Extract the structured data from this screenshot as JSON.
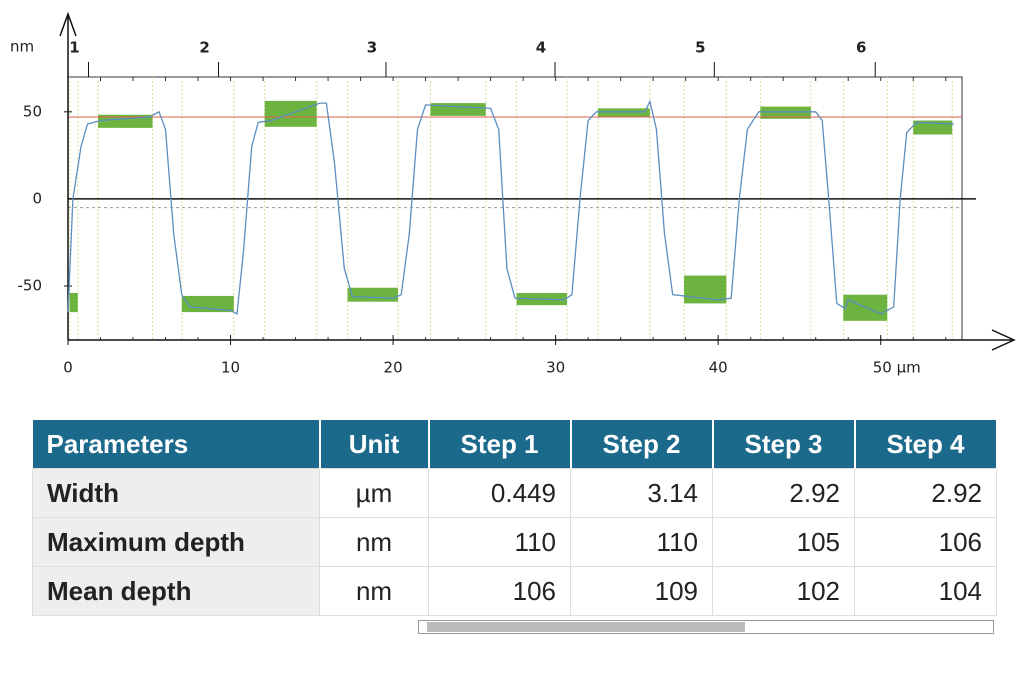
{
  "chart_data": {
    "type": "line",
    "y_unit": "nm",
    "color": "#5b8fc0",
    "x": [
      0,
      0.3,
      0.8,
      1.2,
      2,
      5,
      5.6,
      6,
      6.5,
      7,
      7.5,
      10,
      10.4,
      10.8,
      11.3,
      11.7,
      12.5,
      15.5,
      15.9,
      16.4,
      17,
      17.5,
      20,
      20.5,
      21,
      21.5,
      22,
      26,
      26.5,
      27,
      27.5,
      30.5,
      31,
      31.5,
      32,
      32.5,
      35.5,
      35.8,
      36.2,
      36.7,
      37.2,
      40,
      40.8,
      41.3,
      41.8,
      42.5,
      46,
      46.4,
      46.8,
      47.3,
      47.8,
      48,
      50,
      50.8,
      51.2,
      51.6,
      52.2,
      54.5
    ],
    "values": [
      -65,
      0,
      30,
      43,
      45,
      47,
      50,
      40,
      -20,
      -55,
      -62,
      -64,
      -66,
      -30,
      30,
      44,
      45,
      55,
      55,
      20,
      -40,
      -56,
      -57,
      -55,
      -20,
      40,
      54,
      52,
      40,
      -40,
      -57,
      -58,
      -55,
      0,
      45,
      50,
      50,
      56,
      40,
      -20,
      -55,
      -58,
      -57,
      0,
      40,
      50,
      50,
      45,
      0,
      -60,
      -63,
      -58,
      -66,
      -62,
      0,
      38,
      44,
      43
    ],
    "xlim": [
      0,
      55
    ],
    "ylim": [
      -81,
      70
    ],
    "xticks": [
      0,
      10,
      20,
      30,
      40,
      {
        "value": 50,
        "label": "50 µm"
      }
    ],
    "yticks": [
      -50,
      0,
      50
    ],
    "step_labels": [
      {
        "label": "1",
        "x": 0.4
      },
      {
        "label": "2",
        "x": 8.4
      },
      {
        "label": "3",
        "x": 18.7
      },
      {
        "label": "4",
        "x": 29.1
      },
      {
        "label": "5",
        "x": 38.9
      },
      {
        "label": "6",
        "x": 48.8
      }
    ],
    "region_color": "#6cb33f",
    "regions": [
      {
        "x": [
          0.1,
          0.6
        ],
        "y": [
          -65,
          -54
        ]
      },
      {
        "x": [
          1.85,
          5.2
        ],
        "y": [
          40.8,
          48.3
        ]
      },
      {
        "x": [
          7.0,
          10.2
        ],
        "y": [
          -65,
          -55.7
        ]
      },
      {
        "x": [
          12.1,
          15.3
        ],
        "y": [
          41.4,
          56.3
        ]
      },
      {
        "x": [
          17.2,
          20.3
        ],
        "y": [
          -59,
          -51
        ]
      },
      {
        "x": [
          22.3,
          25.7
        ],
        "y": [
          47.7,
          55
        ]
      },
      {
        "x": [
          27.6,
          30.7
        ],
        "y": [
          -61,
          -54
        ]
      },
      {
        "x": [
          32.6,
          35.8
        ],
        "y": [
          47,
          52
        ]
      },
      {
        "x": [
          37.9,
          40.5
        ],
        "y": [
          -60,
          -44
        ]
      },
      {
        "x": [
          42.6,
          45.7
        ],
        "y": [
          46,
          53
        ]
      },
      {
        "x": [
          47.7,
          50.4
        ],
        "y": [
          -70,
          -55
        ]
      },
      {
        "x": [
          52,
          54.4
        ],
        "y": [
          37,
          45
        ]
      }
    ],
    "reference_line": {
      "y": 47,
      "color": "#e06050"
    },
    "dashed_line": {
      "y": -5
    }
  },
  "table": {
    "columns": [
      "Parameters",
      "Unit",
      "Step 1",
      "Step 2",
      "Step 3",
      "Step 4"
    ],
    "rows": [
      [
        "Width",
        "µm",
        0.449,
        3.14,
        2.92,
        2.92
      ],
      [
        "Maximum depth",
        "nm",
        110,
        110,
        105,
        106
      ],
      [
        "Mean depth",
        "nm",
        106,
        109,
        102,
        104
      ]
    ]
  }
}
